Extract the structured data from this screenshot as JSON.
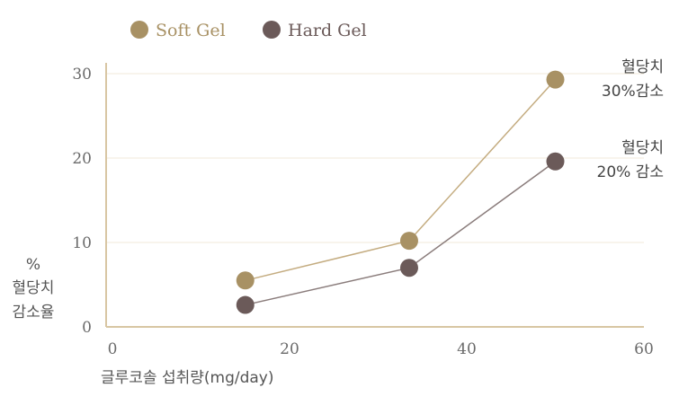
{
  "chart_data": {
    "type": "line",
    "title": "",
    "series": [
      {
        "name": "Soft Gel",
        "color": "#a89164",
        "x": [
          15,
          33.5,
          50
        ],
        "y": [
          5.5,
          10.2,
          29.3
        ]
      },
      {
        "name": "Hard Gel",
        "color": "#6b5a59",
        "x": [
          15,
          33.5,
          50
        ],
        "y": [
          2.6,
          7.0,
          19.6
        ]
      }
    ],
    "xlabel": "글루코솔 섭취량(mg/day)",
    "ylabel": [
      "%",
      "혈당치",
      "감소율"
    ],
    "xlim": [
      0,
      60
    ],
    "ylim": [
      0,
      30
    ],
    "xticks": [
      "0",
      "20",
      "40",
      "60"
    ],
    "yticks": [
      "0",
      "10",
      "20",
      "30"
    ],
    "grid": "horizontal",
    "legend_position": "top-left",
    "axis_color": "#d8c6a3",
    "annotations": [
      {
        "series": "Soft Gel",
        "lines": [
          "혈당치",
          "30%감소"
        ]
      },
      {
        "series": "Hard Gel",
        "lines": [
          "혈당치",
          "20% 감소"
        ]
      }
    ]
  }
}
